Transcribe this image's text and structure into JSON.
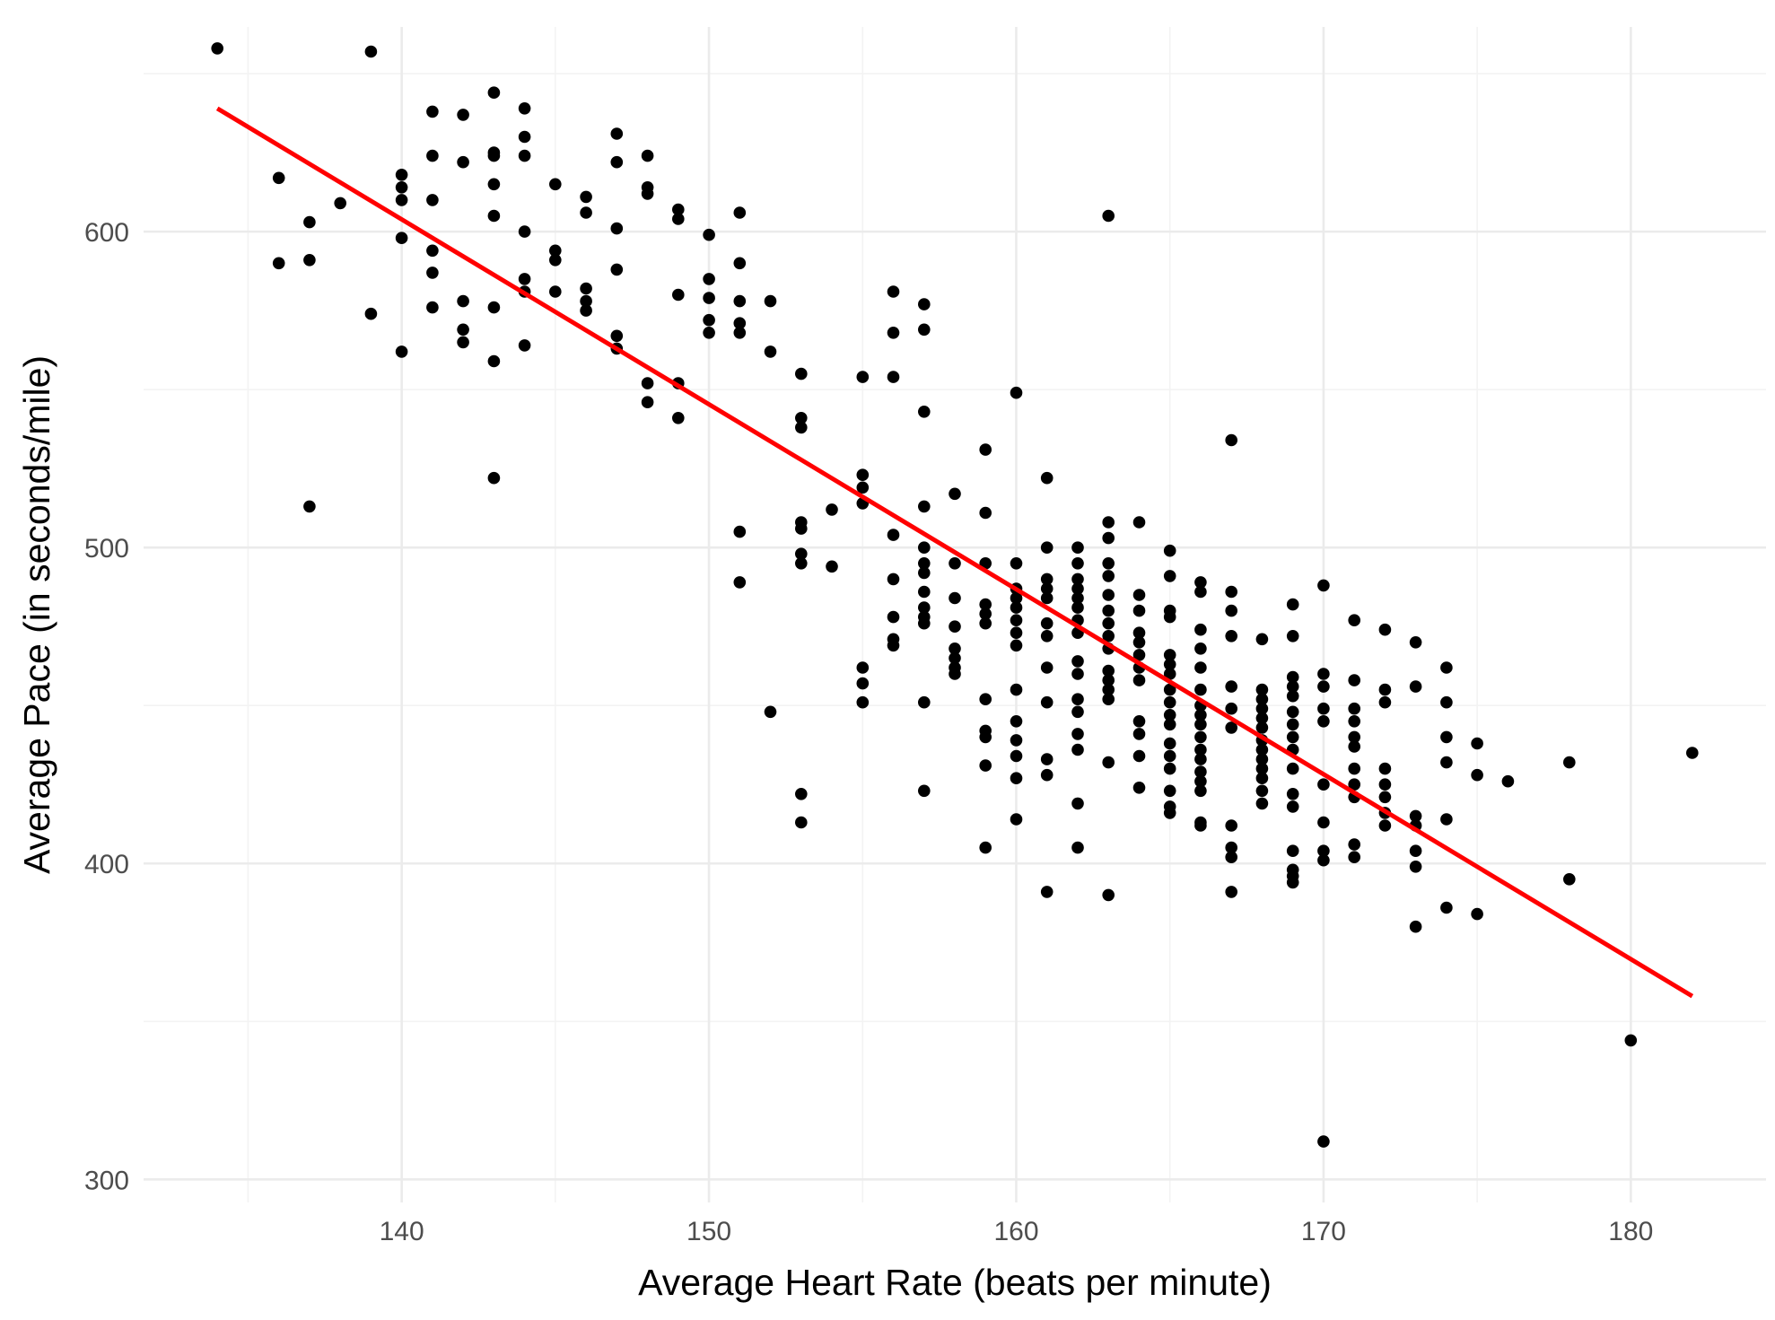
{
  "chart_data": {
    "type": "scatter",
    "title": "",
    "xlabel": "Average Heart Rate (beats per minute)",
    "ylabel": "Average Pace (in seconds/mile)",
    "xlim": [
      131.6,
      184.4
    ],
    "ylim": [
      292.7,
      664.8
    ],
    "x_ticks": [
      140,
      150,
      160,
      170,
      180
    ],
    "y_ticks": [
      300,
      400,
      500,
      600
    ],
    "grid": true,
    "legend": "none",
    "colors": {
      "points": "#000000",
      "trend": "#ff0000",
      "grid": "#ebebeb"
    },
    "trend_line": {
      "type": "linear",
      "points": [
        [
          134,
          639
        ],
        [
          182,
          358
        ]
      ]
    },
    "points": [
      [
        134,
        658
      ],
      [
        136,
        617
      ],
      [
        136,
        590
      ],
      [
        137,
        603
      ],
      [
        137,
        591
      ],
      [
        137,
        513
      ],
      [
        138,
        609
      ],
      [
        139,
        657
      ],
      [
        139,
        574
      ],
      [
        140,
        618
      ],
      [
        140,
        614
      ],
      [
        140,
        610
      ],
      [
        140,
        598
      ],
      [
        140,
        562
      ],
      [
        141,
        638
      ],
      [
        141,
        624
      ],
      [
        141,
        610
      ],
      [
        141,
        594
      ],
      [
        141,
        587
      ],
      [
        141,
        576
      ],
      [
        142,
        637
      ],
      [
        142,
        622
      ],
      [
        142,
        578
      ],
      [
        142,
        569
      ],
      [
        142,
        565
      ],
      [
        143,
        644
      ],
      [
        143,
        625
      ],
      [
        143,
        624
      ],
      [
        143,
        615
      ],
      [
        143,
        605
      ],
      [
        143,
        576
      ],
      [
        143,
        559
      ],
      [
        143,
        522
      ],
      [
        144,
        639
      ],
      [
        144,
        630
      ],
      [
        144,
        624
      ],
      [
        144,
        600
      ],
      [
        144,
        585
      ],
      [
        144,
        581
      ],
      [
        144,
        564
      ],
      [
        145,
        615
      ],
      [
        145,
        594
      ],
      [
        145,
        591
      ],
      [
        145,
        581
      ],
      [
        146,
        611
      ],
      [
        146,
        606
      ],
      [
        146,
        582
      ],
      [
        146,
        578
      ],
      [
        146,
        575
      ],
      [
        147,
        631
      ],
      [
        147,
        622
      ],
      [
        147,
        601
      ],
      [
        147,
        588
      ],
      [
        147,
        567
      ],
      [
        147,
        563
      ],
      [
        148,
        624
      ],
      [
        148,
        614
      ],
      [
        148,
        612
      ],
      [
        148,
        552
      ],
      [
        148,
        546
      ],
      [
        149,
        607
      ],
      [
        149,
        604
      ],
      [
        149,
        580
      ],
      [
        149,
        552
      ],
      [
        149,
        541
      ],
      [
        150,
        599
      ],
      [
        150,
        585
      ],
      [
        150,
        579
      ],
      [
        150,
        572
      ],
      [
        150,
        568
      ],
      [
        151,
        606
      ],
      [
        151,
        590
      ],
      [
        151,
        578
      ],
      [
        151,
        571
      ],
      [
        151,
        568
      ],
      [
        151,
        505
      ],
      [
        151,
        489
      ],
      [
        152,
        578
      ],
      [
        152,
        562
      ],
      [
        152,
        448
      ],
      [
        153,
        555
      ],
      [
        153,
        541
      ],
      [
        153,
        538
      ],
      [
        153,
        508
      ],
      [
        153,
        506
      ],
      [
        153,
        498
      ],
      [
        153,
        495
      ],
      [
        153,
        422
      ],
      [
        153,
        413
      ],
      [
        154,
        512
      ],
      [
        154,
        494
      ],
      [
        155,
        554
      ],
      [
        155,
        523
      ],
      [
        155,
        519
      ],
      [
        155,
        514
      ],
      [
        155,
        462
      ],
      [
        155,
        457
      ],
      [
        155,
        451
      ],
      [
        156,
        581
      ],
      [
        156,
        568
      ],
      [
        156,
        554
      ],
      [
        156,
        504
      ],
      [
        156,
        490
      ],
      [
        156,
        478
      ],
      [
        156,
        471
      ],
      [
        156,
        469
      ],
      [
        157,
        577
      ],
      [
        157,
        569
      ],
      [
        157,
        543
      ],
      [
        157,
        513
      ],
      [
        157,
        500
      ],
      [
        157,
        495
      ],
      [
        157,
        492
      ],
      [
        157,
        486
      ],
      [
        157,
        481
      ],
      [
        157,
        478
      ],
      [
        157,
        476
      ],
      [
        157,
        451
      ],
      [
        157,
        423
      ],
      [
        158,
        517
      ],
      [
        158,
        495
      ],
      [
        158,
        484
      ],
      [
        158,
        475
      ],
      [
        158,
        468
      ],
      [
        158,
        465
      ],
      [
        158,
        462
      ],
      [
        158,
        460
      ],
      [
        159,
        531
      ],
      [
        159,
        511
      ],
      [
        159,
        495
      ],
      [
        159,
        482
      ],
      [
        159,
        479
      ],
      [
        159,
        476
      ],
      [
        159,
        452
      ],
      [
        159,
        442
      ],
      [
        159,
        440
      ],
      [
        159,
        431
      ],
      [
        159,
        405
      ],
      [
        160,
        549
      ],
      [
        160,
        495
      ],
      [
        160,
        487
      ],
      [
        160,
        484
      ],
      [
        160,
        481
      ],
      [
        160,
        477
      ],
      [
        160,
        473
      ],
      [
        160,
        469
      ],
      [
        160,
        455
      ],
      [
        160,
        445
      ],
      [
        160,
        439
      ],
      [
        160,
        434
      ],
      [
        160,
        427
      ],
      [
        160,
        414
      ],
      [
        161,
        522
      ],
      [
        161,
        500
      ],
      [
        161,
        490
      ],
      [
        161,
        487
      ],
      [
        161,
        484
      ],
      [
        161,
        476
      ],
      [
        161,
        472
      ],
      [
        161,
        462
      ],
      [
        161,
        451
      ],
      [
        161,
        433
      ],
      [
        161,
        428
      ],
      [
        161,
        391
      ],
      [
        162,
        500
      ],
      [
        162,
        495
      ],
      [
        162,
        490
      ],
      [
        162,
        487
      ],
      [
        162,
        484
      ],
      [
        162,
        481
      ],
      [
        162,
        477
      ],
      [
        162,
        473
      ],
      [
        162,
        464
      ],
      [
        162,
        460
      ],
      [
        162,
        452
      ],
      [
        162,
        448
      ],
      [
        162,
        441
      ],
      [
        162,
        436
      ],
      [
        162,
        419
      ],
      [
        162,
        405
      ],
      [
        163,
        605
      ],
      [
        163,
        508
      ],
      [
        163,
        503
      ],
      [
        163,
        495
      ],
      [
        163,
        491
      ],
      [
        163,
        485
      ],
      [
        163,
        480
      ],
      [
        163,
        476
      ],
      [
        163,
        472
      ],
      [
        163,
        468
      ],
      [
        163,
        461
      ],
      [
        163,
        458
      ],
      [
        163,
        455
      ],
      [
        163,
        452
      ],
      [
        163,
        432
      ],
      [
        163,
        390
      ],
      [
        164,
        508
      ],
      [
        164,
        485
      ],
      [
        164,
        480
      ],
      [
        164,
        473
      ],
      [
        164,
        470
      ],
      [
        164,
        466
      ],
      [
        164,
        462
      ],
      [
        164,
        458
      ],
      [
        164,
        445
      ],
      [
        164,
        441
      ],
      [
        164,
        434
      ],
      [
        164,
        424
      ],
      [
        165,
        499
      ],
      [
        165,
        491
      ],
      [
        165,
        480
      ],
      [
        165,
        478
      ],
      [
        165,
        466
      ],
      [
        165,
        463
      ],
      [
        165,
        460
      ],
      [
        165,
        455
      ],
      [
        165,
        451
      ],
      [
        165,
        447
      ],
      [
        165,
        444
      ],
      [
        165,
        438
      ],
      [
        165,
        434
      ],
      [
        165,
        430
      ],
      [
        165,
        423
      ],
      [
        165,
        418
      ],
      [
        165,
        416
      ],
      [
        166,
        489
      ],
      [
        166,
        486
      ],
      [
        166,
        474
      ],
      [
        166,
        468
      ],
      [
        166,
        462
      ],
      [
        166,
        455
      ],
      [
        166,
        450
      ],
      [
        166,
        447
      ],
      [
        166,
        444
      ],
      [
        166,
        440
      ],
      [
        166,
        436
      ],
      [
        166,
        433
      ],
      [
        166,
        429
      ],
      [
        166,
        426
      ],
      [
        166,
        423
      ],
      [
        166,
        413
      ],
      [
        166,
        412
      ],
      [
        167,
        534
      ],
      [
        167,
        486
      ],
      [
        167,
        480
      ],
      [
        167,
        472
      ],
      [
        167,
        456
      ],
      [
        167,
        449
      ],
      [
        167,
        443
      ],
      [
        167,
        412
      ],
      [
        167,
        405
      ],
      [
        167,
        402
      ],
      [
        167,
        391
      ],
      [
        168,
        471
      ],
      [
        168,
        455
      ],
      [
        168,
        452
      ],
      [
        168,
        449
      ],
      [
        168,
        446
      ],
      [
        168,
        443
      ],
      [
        168,
        439
      ],
      [
        168,
        436
      ],
      [
        168,
        433
      ],
      [
        168,
        430
      ],
      [
        168,
        427
      ],
      [
        168,
        423
      ],
      [
        168,
        419
      ],
      [
        169,
        482
      ],
      [
        169,
        472
      ],
      [
        169,
        459
      ],
      [
        169,
        456
      ],
      [
        169,
        453
      ],
      [
        169,
        448
      ],
      [
        169,
        444
      ],
      [
        169,
        440
      ],
      [
        169,
        436
      ],
      [
        169,
        430
      ],
      [
        169,
        422
      ],
      [
        169,
        418
      ],
      [
        169,
        404
      ],
      [
        169,
        398
      ],
      [
        169,
        396
      ],
      [
        169,
        394
      ],
      [
        170,
        488
      ],
      [
        170,
        460
      ],
      [
        170,
        456
      ],
      [
        170,
        449
      ],
      [
        170,
        445
      ],
      [
        170,
        425
      ],
      [
        170,
        413
      ],
      [
        170,
        404
      ],
      [
        170,
        401
      ],
      [
        170,
        312
      ],
      [
        171,
        477
      ],
      [
        171,
        458
      ],
      [
        171,
        449
      ],
      [
        171,
        445
      ],
      [
        171,
        440
      ],
      [
        171,
        437
      ],
      [
        171,
        430
      ],
      [
        171,
        425
      ],
      [
        171,
        421
      ],
      [
        171,
        406
      ],
      [
        171,
        402
      ],
      [
        172,
        474
      ],
      [
        172,
        455
      ],
      [
        172,
        451
      ],
      [
        172,
        430
      ],
      [
        172,
        425
      ],
      [
        172,
        421
      ],
      [
        172,
        416
      ],
      [
        172,
        412
      ],
      [
        173,
        470
      ],
      [
        173,
        456
      ],
      [
        173,
        415
      ],
      [
        173,
        412
      ],
      [
        173,
        404
      ],
      [
        173,
        399
      ],
      [
        173,
        380
      ],
      [
        174,
        462
      ],
      [
        174,
        451
      ],
      [
        174,
        440
      ],
      [
        174,
        432
      ],
      [
        174,
        414
      ],
      [
        174,
        386
      ],
      [
        175,
        438
      ],
      [
        175,
        428
      ],
      [
        175,
        384
      ],
      [
        176,
        426
      ],
      [
        178,
        432
      ],
      [
        178,
        395
      ],
      [
        180,
        344
      ],
      [
        182,
        435
      ]
    ]
  }
}
